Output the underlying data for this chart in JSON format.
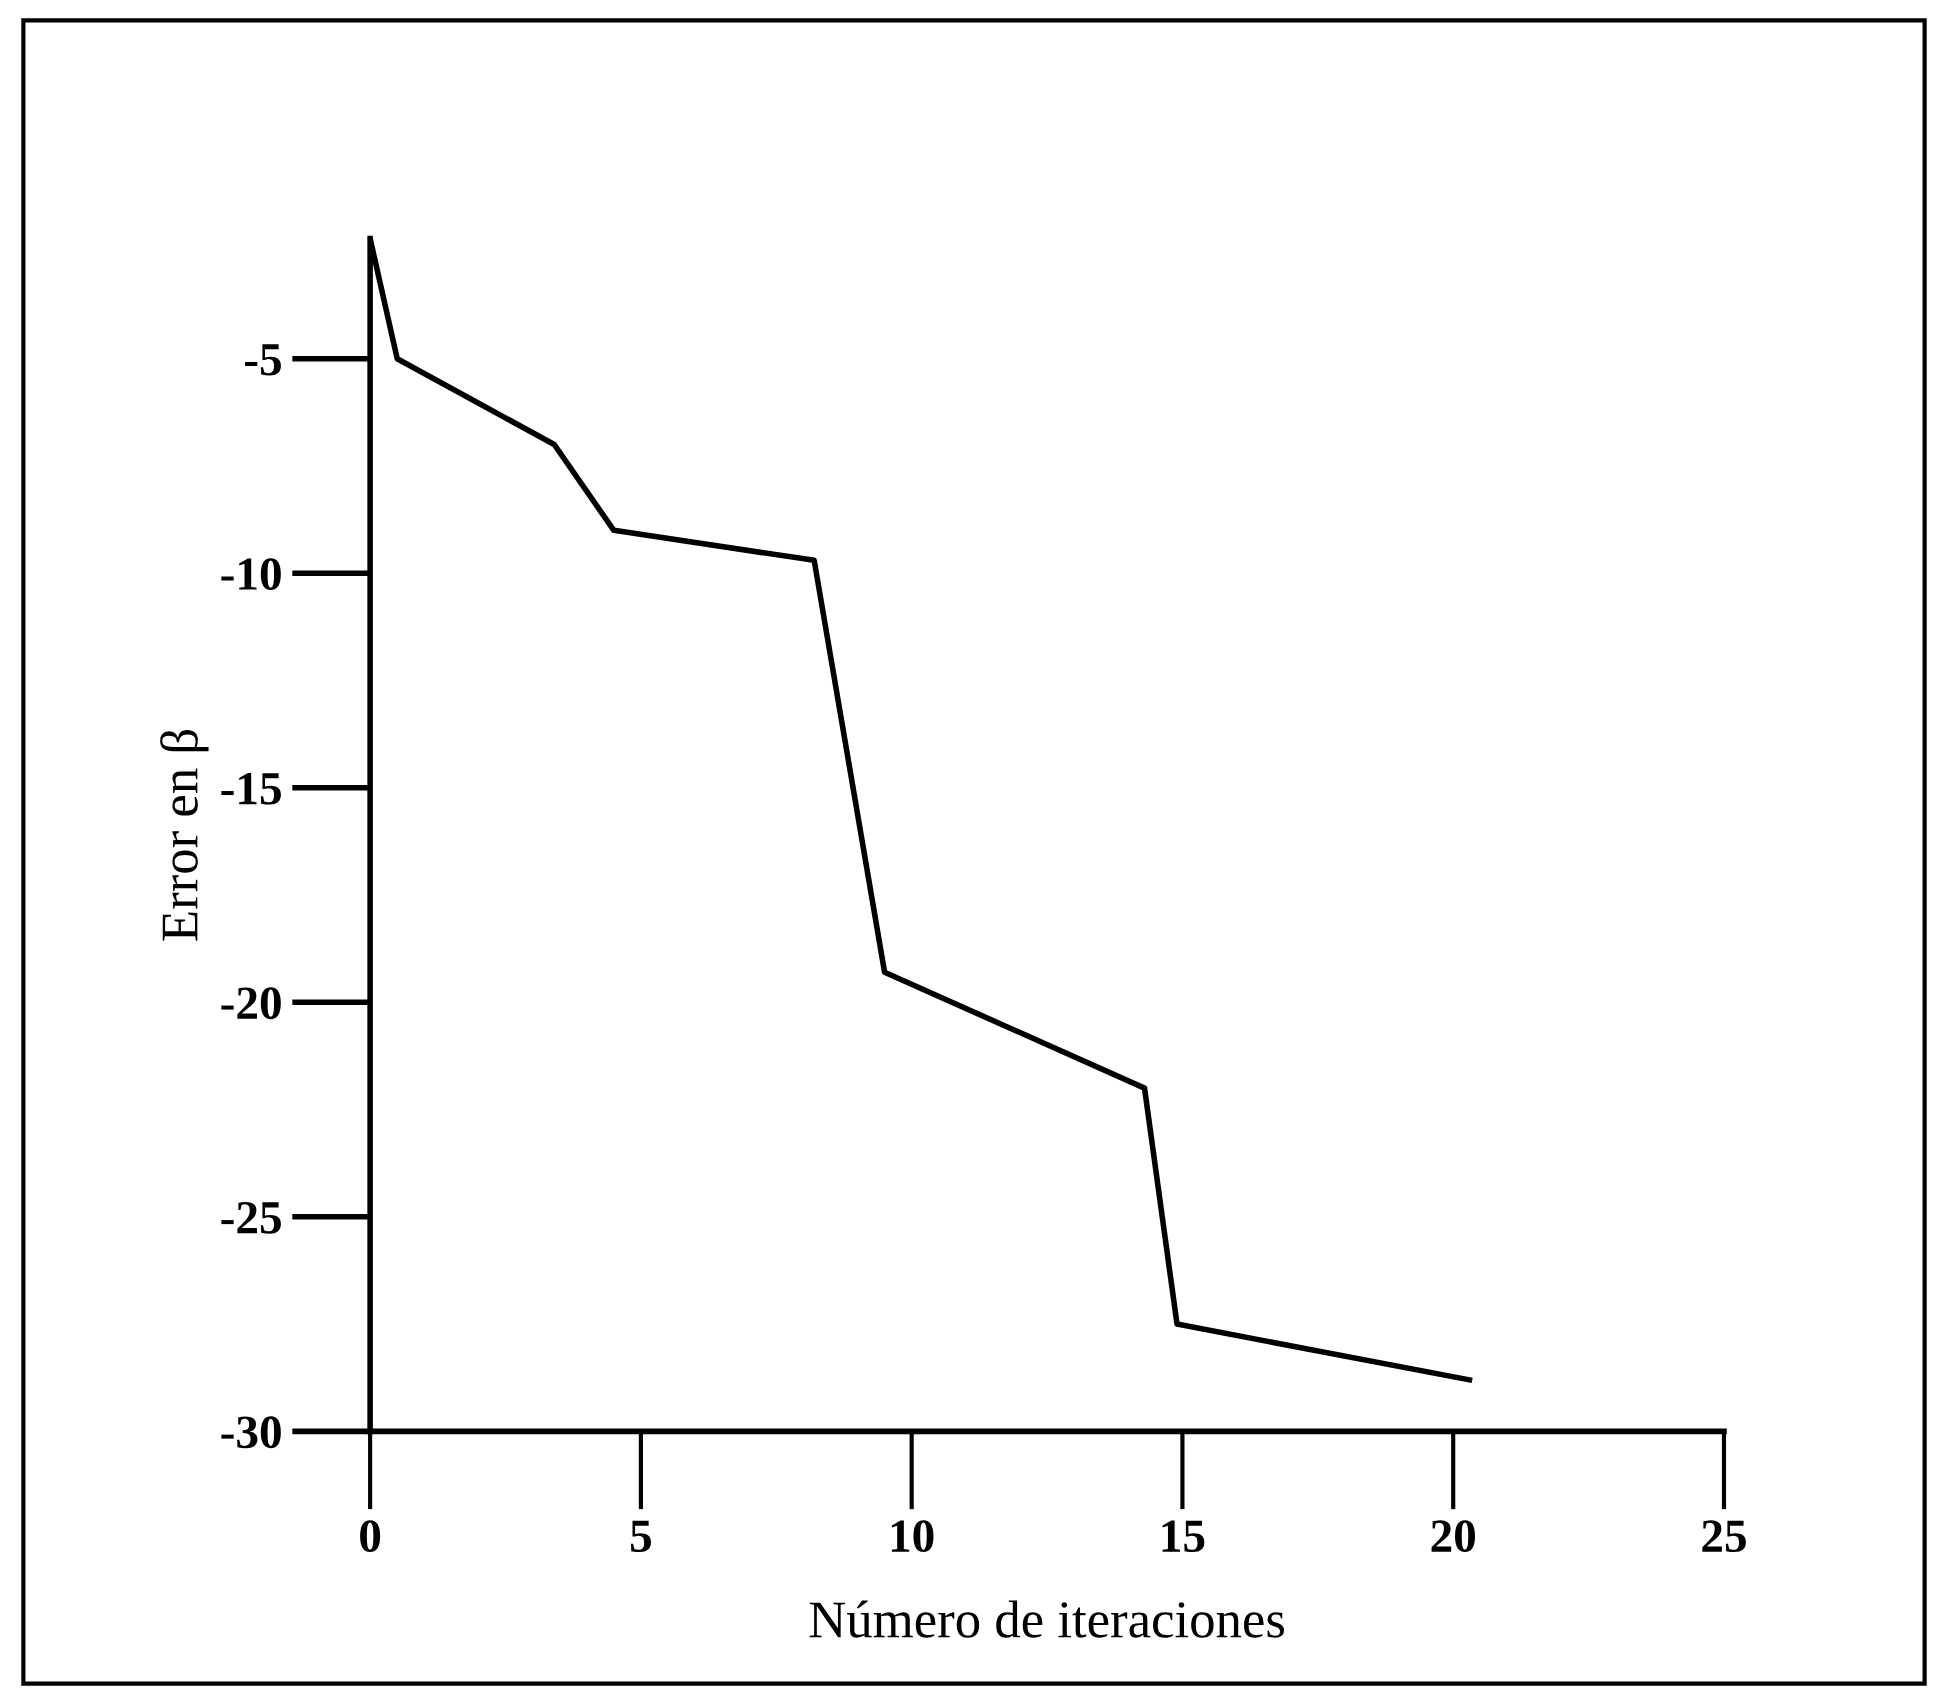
{
  "chart_data": {
    "type": "line",
    "xlabel": "Número de iteraciones",
    "ylabel": "Error en β",
    "x": [
      0,
      0.5,
      3.4,
      4.5,
      8.2,
      9.5,
      14.3,
      14.9,
      20.3
    ],
    "series": [
      {
        "color": "#000000",
        "values": [
          -2.2,
          -5,
          -7.0,
          -9.0,
          -9.7,
          -19.3,
          -22.0,
          -27.5,
          -28.8
        ]
      }
    ],
    "xlim": [
      0,
      25
    ],
    "xticks": [
      0,
      5,
      10,
      15,
      20,
      25
    ],
    "ylim": [
      -30,
      -2.2
    ],
    "yticks": [
      -30,
      -25,
      -20,
      -15,
      -10,
      -5
    ],
    "grid": false,
    "marker": "none",
    "line_style": "solid"
  }
}
